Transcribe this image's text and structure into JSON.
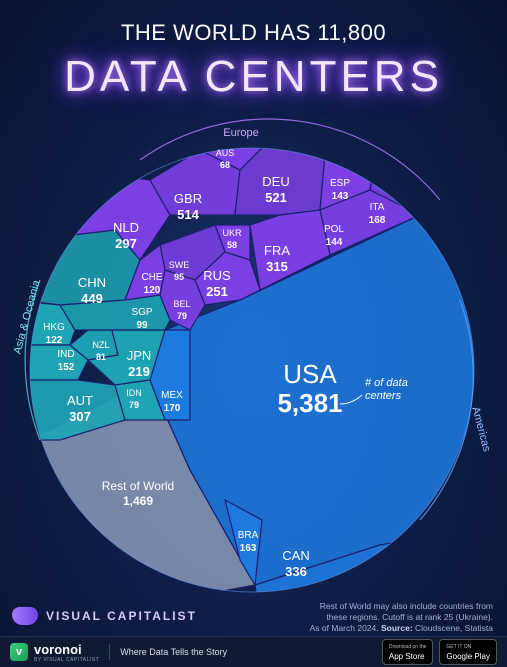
{
  "header": {
    "subtitle": "THE WORLD HAS 11,800",
    "title": "DATA CENTERS"
  },
  "annotation": {
    "line1": "# of data",
    "line2": "centers"
  },
  "colors": {
    "europe": "#7b3fe4",
    "asia_oceania": "#1fa3b5",
    "americas": "#1f7ae0",
    "rest_of_world": "#8a9ab8",
    "accent_glow": "#b57cff"
  },
  "chart_data": {
    "type": "voronoi_treemap",
    "title": "THE WORLD HAS 11,800 DATA CENTERS",
    "total": 11800,
    "groups": [
      {
        "name": "Europe",
        "items": [
          {
            "code": "DEU",
            "value": 521
          },
          {
            "code": "GBR",
            "value": 514
          },
          {
            "code": "FRA",
            "value": 315
          },
          {
            "code": "NLD",
            "value": 297
          },
          {
            "code": "RUS",
            "value": 251
          },
          {
            "code": "ITA",
            "value": 168
          },
          {
            "code": "POL",
            "value": 144
          },
          {
            "code": "ESP",
            "value": 143
          },
          {
            "code": "CHE",
            "value": 120
          },
          {
            "code": "SWE",
            "value": 95
          },
          {
            "code": "BEL",
            "value": 79
          },
          {
            "code": "AUS",
            "value": 68
          },
          {
            "code": "UKR",
            "value": 58
          }
        ]
      },
      {
        "name": "Asia & Oceania",
        "items": [
          {
            "code": "CHN",
            "value": 449
          },
          {
            "code": "AUT",
            "value": 307
          },
          {
            "code": "JPN",
            "value": 219
          },
          {
            "code": "IND",
            "value": 152
          },
          {
            "code": "HKG",
            "value": 122
          },
          {
            "code": "SGP",
            "value": 99
          },
          {
            "code": "NZL",
            "value": 81
          },
          {
            "code": "IDN",
            "value": 79
          }
        ]
      },
      {
        "name": "Americas",
        "items": [
          {
            "code": "USA",
            "value": 5381
          },
          {
            "code": "CAN",
            "value": 336
          },
          {
            "code": "MEX",
            "value": 170
          },
          {
            "code": "BRA",
            "value": 163
          }
        ]
      },
      {
        "name": "",
        "items": [
          {
            "code": "Rest of World",
            "value": 1469
          }
        ]
      }
    ]
  },
  "brand": {
    "name": "VISUAL CAPITALIST"
  },
  "note": {
    "line1": "Rest of World may also include countries from",
    "line2": "these regions. Cutoff is at rank 25 (Ukraine).",
    "line3": "As of March 2024.",
    "source_label": "Source:",
    "source": "Cloudscene, Statista"
  },
  "footer": {
    "app_name": "voronoi",
    "app_sub": "BY VISUAL CAPITALIST",
    "tagline": "Where Data Tells the Story",
    "appstore_small": "Download on the",
    "appstore": "App Store",
    "googleplay_small": "GET IT ON",
    "googleplay": "Google Play"
  }
}
